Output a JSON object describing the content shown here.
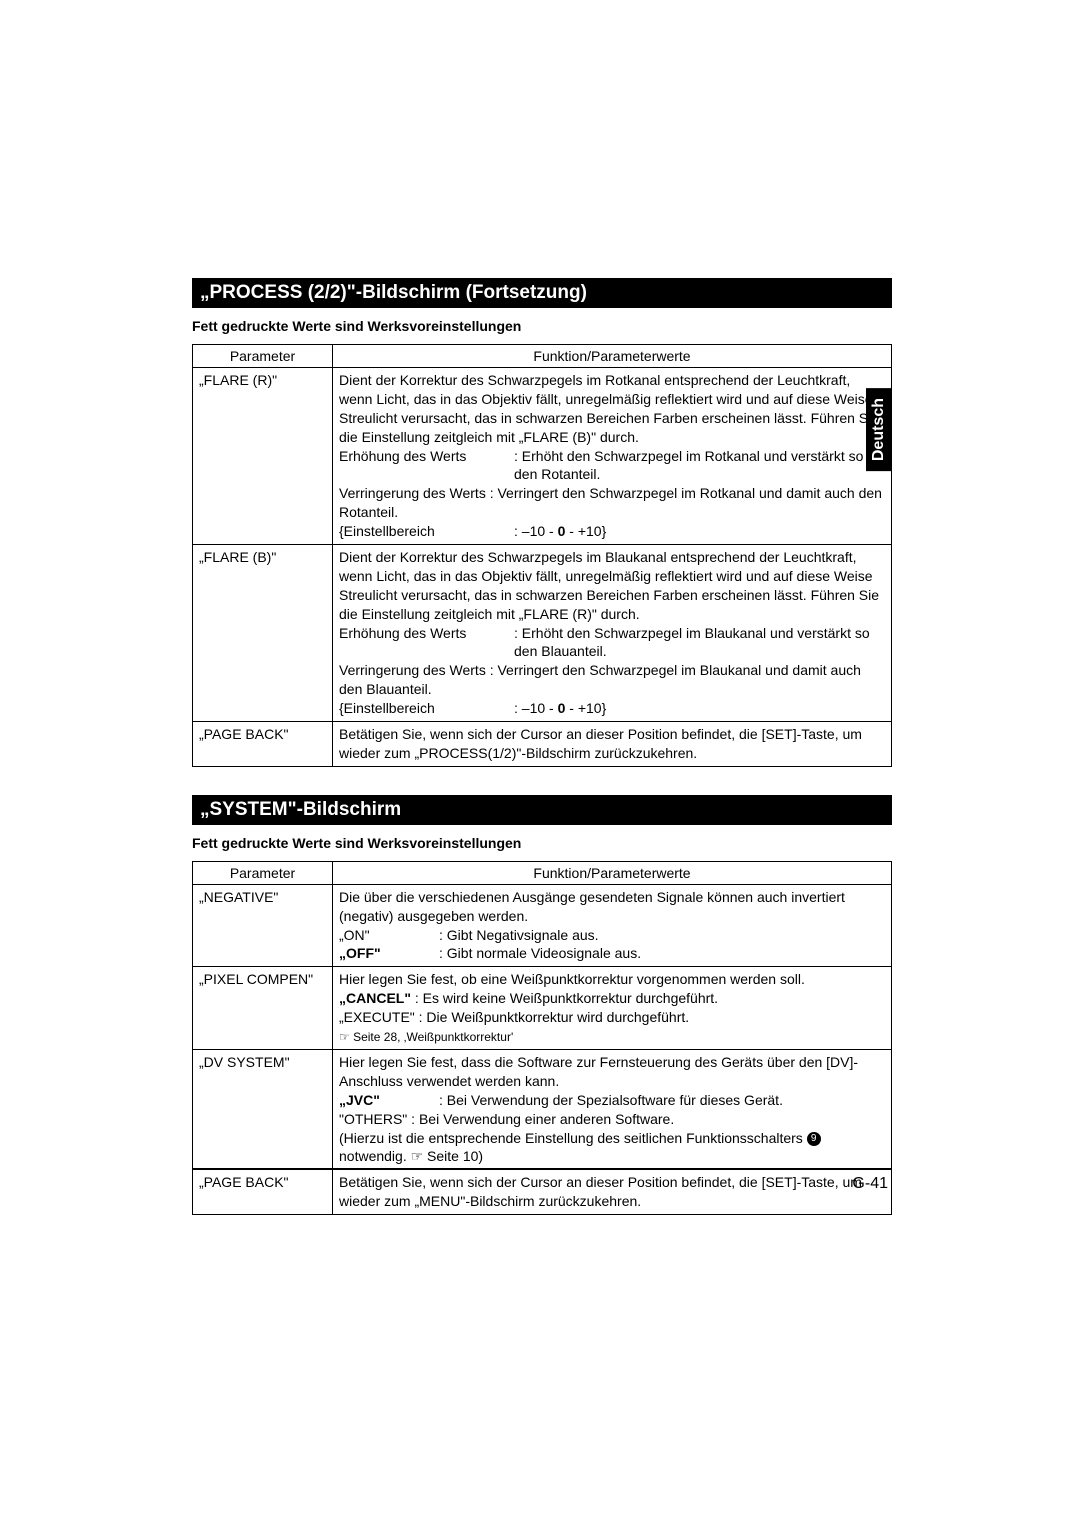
{
  "language_tab": "Deutsch",
  "page_number": "G-41",
  "sections": [
    {
      "title": "„PROCESS (2/2)\"-Bildschirm (Fortsetzung)",
      "note": "Fett gedruckte Werte sind Werksvoreinstellungen",
      "headers": {
        "param": "Parameter",
        "func": "Funktion/Parameterwerte"
      },
      "rows": {
        "flare_r": {
          "param": "„FLARE (R)\"",
          "desc": "Dient der Korrektur des Schwarzpegels im Rotkanal entsprechend der Leuchtkraft, wenn Licht, das in das Objektiv fällt, unregelmäßig reflektiert wird und auf diese Weise Streulicht verursacht, das in schwarzen Bereichen Farben erscheinen lässt. Führen Sie die Einstellung zeitgleich mit „FLARE (B)\" durch.",
          "inc_label": "Erhöhung des Werts",
          "inc_val": ": Erhöht den Schwarzpegel im Rotkanal und verstärkt so den Rotanteil.",
          "dec": "Verringerung des Werts : Verringert den Schwarzpegel im Rotkanal und damit auch den Rotanteil.",
          "range_label": "{Einstellbereich",
          "range_a": ": –10 - ",
          "range_b": "0",
          "range_c": " - +10}"
        },
        "flare_b": {
          "param": "„FLARE (B)\"",
          "desc": "Dient der Korrektur des Schwarzpegels im Blaukanal entsprechend der Leuchtkraft, wenn Licht, das in das Objektiv fällt, unregelmäßig reflektiert wird und auf diese Weise Streulicht verursacht, das in schwarzen Bereichen Farben erscheinen lässt. Führen Sie die Einstellung zeitgleich mit „FLARE (R)\" durch.",
          "inc_label": "Erhöhung des Werts",
          "inc_val": ": Erhöht den Schwarzpegel im Blaukanal und verstärkt so den Blauanteil.",
          "dec": "Verringerung des Werts : Verringert den Schwarzpegel im Blaukanal und damit auch den Blauanteil.",
          "range_label": "{Einstellbereich",
          "range_a": ": –10 - ",
          "range_b": "0",
          "range_c": " - +10}"
        },
        "page_back": {
          "param": "„PAGE BACK\"",
          "desc": "Betätigen Sie, wenn sich der Cursor an dieser Position befindet, die [SET]-Taste, um wieder zum „PROCESS(1/2)\"-Bildschirm zurückzukehren."
        }
      }
    },
    {
      "title": "„SYSTEM\"-Bildschirm",
      "note": "Fett gedruckte Werte sind Werksvoreinstellungen",
      "headers": {
        "param": "Parameter",
        "func": "Funktion/Parameterwerte"
      },
      "rows": {
        "negative": {
          "param": "„NEGATIVE\"",
          "desc": "Die über die verschiedenen Ausgänge gesendeten Signale können auch invertiert (negativ) ausgegeben werden.",
          "on_label": "„ON\"",
          "on_val": ": Gibt Negativsignale aus.",
          "off_label": "„OFF\"",
          "off_val": ": Gibt normale Videosignale aus."
        },
        "pixel": {
          "param": "„PIXEL COMPEN\"",
          "desc": "Hier legen Sie fest, ob eine Weißpunktkorrektur vorgenommen werden soll.",
          "cancel_label": "„CANCEL\"",
          "cancel_val": ": Es wird keine Weißpunktkorrektur durchgeführt.",
          "execute": "„EXECUTE\" : Die Weißpunktkorrektur wird durchgeführt.",
          "ref": "☞ Seite 28, ‚Weißpunktkorrektur'"
        },
        "dv": {
          "param": "„DV SYSTEM\"",
          "desc": "Hier legen Sie fest, dass die Software zur Fernsteuerung des Geräts über den [DV]-Anschluss verwendet werden kann.",
          "jvc_label": "„JVC\"",
          "jvc_val": ": Bei Verwendung der Spezialsoftware für dieses Gerät.",
          "others": "\"OTHERS\"   : Bei Verwendung einer anderen Software.",
          "note_a": "(Hierzu ist die entsprechende Einstellung des seitlichen Funktionsschalters ",
          "note_num": "9",
          "note_b": " notwendig. ☞ Seite 10)"
        },
        "page_back": {
          "param": "„PAGE BACK\"",
          "desc": "Betätigen Sie, wenn sich der Cursor an dieser Position befindet, die [SET]-Taste, um wieder zum „MENU\"-Bildschirm zurückzukehren."
        }
      }
    }
  ]
}
